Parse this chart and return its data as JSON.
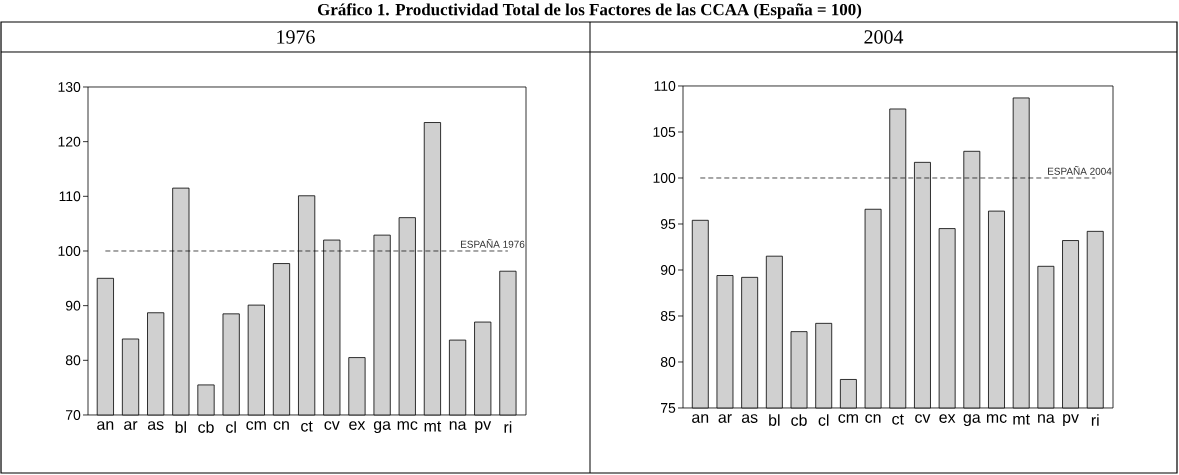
{
  "chart_data": [
    {
      "type": "bar",
      "title": "Gráfico 1. Productividad Total de los Factores de las CCAA (España = 100)",
      "subtitle": "1976",
      "categories": [
        "an",
        "ar",
        "as",
        "bl",
        "cb",
        "cl",
        "cm",
        "cn",
        "ct",
        "cv",
        "ex",
        "ga",
        "mc",
        "mt",
        "na",
        "pv",
        "ri"
      ],
      "values": [
        95.0,
        83.9,
        88.7,
        111.5,
        75.5,
        88.5,
        90.1,
        97.7,
        110.1,
        102.0,
        80.5,
        102.9,
        106.1,
        123.5,
        83.7,
        87.0,
        96.3
      ],
      "color": "#d0d0d0",
      "ylim": [
        70,
        130
      ],
      "yticks": [
        70,
        80,
        90,
        100,
        110,
        120,
        130
      ],
      "ref_lines": [
        {
          "axis": "y",
          "value": 100,
          "label": "ESPAÑA 1976",
          "line_style": "dashed"
        }
      ]
    },
    {
      "type": "bar",
      "subtitle": "2004",
      "categories": [
        "an",
        "ar",
        "as",
        "bl",
        "cb",
        "cl",
        "cm",
        "cn",
        "ct",
        "cv",
        "ex",
        "ga",
        "mc",
        "mt",
        "na",
        "pv",
        "ri"
      ],
      "values": [
        95.4,
        89.4,
        89.2,
        91.5,
        83.3,
        84.2,
        78.1,
        96.6,
        107.5,
        101.7,
        94.5,
        102.9,
        96.4,
        108.7,
        90.4,
        93.2,
        94.2
      ],
      "color": "#d0d0d0",
      "ylim": [
        75,
        110
      ],
      "yticks": [
        75,
        80,
        85,
        90,
        95,
        100,
        105,
        110
      ],
      "ref_lines": [
        {
          "axis": "y",
          "value": 100,
          "label": "ESPAÑA 2004",
          "line_style": "dashed"
        }
      ]
    }
  ]
}
